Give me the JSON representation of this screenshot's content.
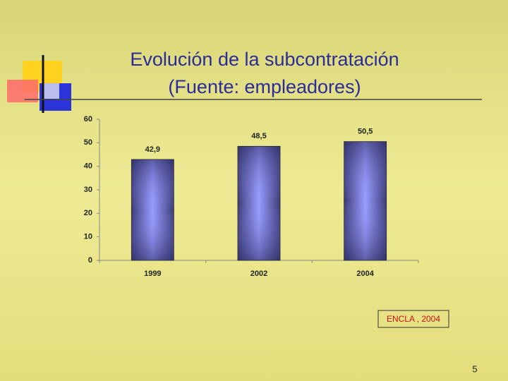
{
  "chart_data": {
    "type": "bar",
    "title": "Evolución de la subcontratación",
    "subtitle": "(Fuente: empleadores)",
    "categories": [
      "1999",
      "2002",
      "2004"
    ],
    "values": [
      42.9,
      48.5,
      50.5
    ],
    "value_labels": [
      "42,9",
      "48,5",
      "50,5"
    ],
    "ylim": [
      0,
      60
    ],
    "yticks": [
      0,
      10,
      20,
      30,
      40,
      50,
      60
    ],
    "grid": false,
    "source": "ENCLA , 2004",
    "page_number": "5"
  }
}
